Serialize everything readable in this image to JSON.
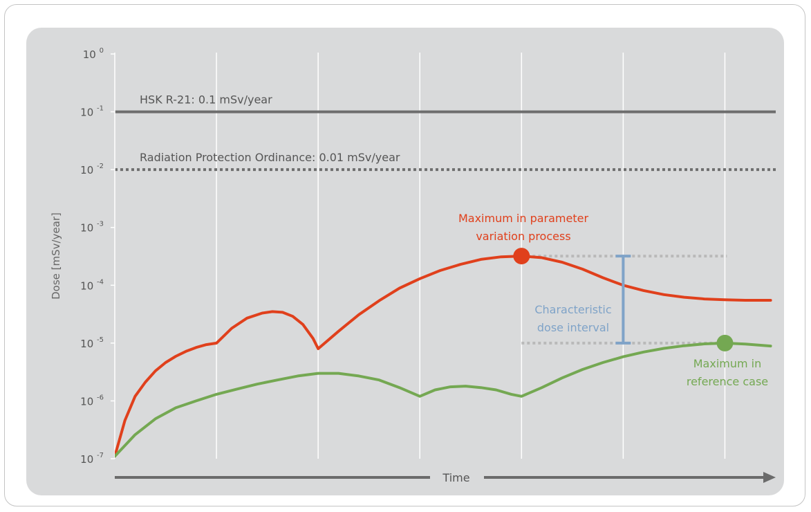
{
  "chart_data": {
    "type": "line",
    "xlabel": "Time",
    "ylabel": "Dose [mSv/year]",
    "yscale": "log",
    "ylim": [
      1e-07,
      1
    ],
    "xlim": [
      0,
      6.5
    ],
    "y_ticks": [
      {
        "base": "10",
        "exp": "0",
        "value": 1
      },
      {
        "base": "10",
        "exp": "-1",
        "value": 0.1
      },
      {
        "base": "10",
        "exp": "-2",
        "value": 0.01
      },
      {
        "base": "10",
        "exp": "-3",
        "value": 0.001
      },
      {
        "base": "10",
        "exp": "-4",
        "value": 0.0001
      },
      {
        "base": "10",
        "exp": "-5",
        "value": 1e-05
      },
      {
        "base": "10",
        "exp": "-6",
        "value": 1e-06
      },
      {
        "base": "10",
        "exp": "-7",
        "value": 1e-07
      }
    ],
    "x_gridlines": [
      1,
      2,
      3,
      4,
      5,
      6
    ],
    "grid": true,
    "reference_lines": [
      {
        "label": "HSK R-21: 0.1 mSv/year",
        "y": 0.1,
        "style": "solid",
        "color": "#6e6e6e"
      },
      {
        "label": "Radiation Protection Ordinance: 0.01 mSv/year",
        "y": 0.01,
        "style": "dotted",
        "color": "#6e6e6e"
      }
    ],
    "series": [
      {
        "color": "#e0401c",
        "points": [
          [
            0,
            1.1e-07
          ],
          [
            0.1,
            4.6e-07
          ],
          [
            0.2,
            1.2e-06
          ],
          [
            0.3,
            2.1e-06
          ],
          [
            0.4,
            3.3e-06
          ],
          [
            0.5,
            4.6e-06
          ],
          [
            0.6,
            5.9e-06
          ],
          [
            0.7,
            7.2e-06
          ],
          [
            0.8,
            8.4e-06
          ],
          [
            0.9,
            9.4e-06
          ],
          [
            1.0,
            1e-05
          ],
          [
            1.15,
            1.8e-05
          ],
          [
            1.3,
            2.7e-05
          ],
          [
            1.45,
            3.3e-05
          ],
          [
            1.55,
            3.5e-05
          ],
          [
            1.65,
            3.4e-05
          ],
          [
            1.75,
            2.9e-05
          ],
          [
            1.85,
            2.1e-05
          ],
          [
            1.95,
            1.2e-05
          ],
          [
            2.0,
            8e-06
          ],
          [
            2.2,
            1.6e-05
          ],
          [
            2.4,
            3.1e-05
          ],
          [
            2.6,
            5.4e-05
          ],
          [
            2.8,
            8.9e-05
          ],
          [
            3.0,
            0.00013
          ],
          [
            3.2,
            0.00018
          ],
          [
            3.4,
            0.00023
          ],
          [
            3.6,
            0.00028
          ],
          [
            3.8,
            0.00031
          ],
          [
            4.0,
            0.00032
          ],
          [
            4.2,
            0.0003
          ],
          [
            4.4,
            0.00025
          ],
          [
            4.6,
            0.00019
          ],
          [
            4.8,
            0.000135
          ],
          [
            5.0,
            0.0001
          ],
          [
            5.2,
            8.1e-05
          ],
          [
            5.4,
            6.9e-05
          ],
          [
            5.6,
            6.2e-05
          ],
          [
            5.8,
            5.8e-05
          ],
          [
            6.0,
            5.6e-05
          ],
          [
            6.2,
            5.5e-05
          ],
          [
            6.45,
            5.5e-05
          ]
        ]
      },
      {
        "color": "#74a852",
        "points": [
          [
            0,
            1.1e-07
          ],
          [
            0.2,
            2.6e-07
          ],
          [
            0.4,
            4.9e-07
          ],
          [
            0.6,
            7.6e-07
          ],
          [
            0.8,
            1e-06
          ],
          [
            1.0,
            1.3e-06
          ],
          [
            1.2,
            1.6e-06
          ],
          [
            1.4,
            1.95e-06
          ],
          [
            1.6,
            2.3e-06
          ],
          [
            1.8,
            2.7e-06
          ],
          [
            2.0,
            3e-06
          ],
          [
            2.2,
            3e-06
          ],
          [
            2.4,
            2.7e-06
          ],
          [
            2.6,
            2.3e-06
          ],
          [
            2.8,
            1.7e-06
          ],
          [
            3.0,
            1.2e-06
          ],
          [
            3.15,
            1.55e-06
          ],
          [
            3.3,
            1.75e-06
          ],
          [
            3.45,
            1.8e-06
          ],
          [
            3.6,
            1.7e-06
          ],
          [
            3.75,
            1.55e-06
          ],
          [
            3.9,
            1.3e-06
          ],
          [
            4.0,
            1.2e-06
          ],
          [
            4.2,
            1.7e-06
          ],
          [
            4.4,
            2.5e-06
          ],
          [
            4.6,
            3.5e-06
          ],
          [
            4.8,
            4.6e-06
          ],
          [
            5.0,
            5.8e-06
          ],
          [
            5.2,
            7e-06
          ],
          [
            5.4,
            8.1e-06
          ],
          [
            5.6,
            9e-06
          ],
          [
            5.8,
            9.7e-06
          ],
          [
            6.0,
            1e-05
          ],
          [
            6.2,
            9.6e-06
          ],
          [
            6.45,
            8.9e-06
          ]
        ]
      }
    ],
    "markers": [
      {
        "series": 0,
        "x": 4.0,
        "y": 0.00032,
        "color": "#e0401c"
      },
      {
        "series": 1,
        "x": 6.0,
        "y": 1e-05,
        "color": "#74a852"
      }
    ],
    "interval": {
      "x": 5.0,
      "y_low": 1e-05,
      "y_high": 0.00032,
      "color": "#7fa3c8",
      "guide_from_x": 4.0,
      "guide_to_x": 6.0
    },
    "annotations": {
      "max_param": [
        "Maximum in parameter",
        "variation process"
      ],
      "max_ref": [
        "Maximum in",
        "reference case"
      ],
      "interval": [
        "Characteristic",
        "dose interval"
      ]
    }
  }
}
